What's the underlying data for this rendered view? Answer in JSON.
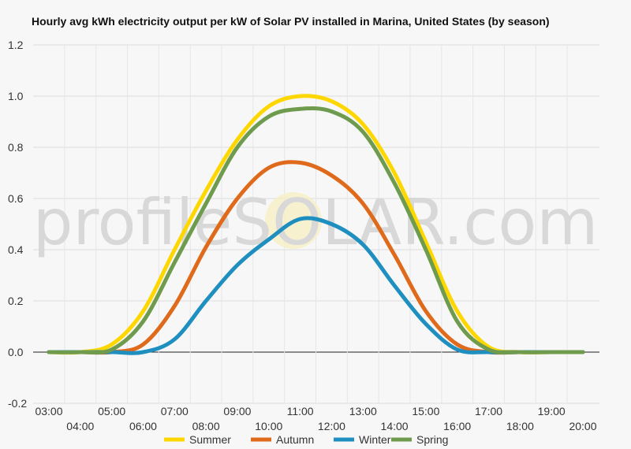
{
  "chart_data": {
    "type": "line",
    "title": "Hourly avg kWh electricity output per kW of Solar PV installed in Marina, United States (by season)",
    "xlabel": "",
    "ylabel": "",
    "categories": [
      "03:00",
      "04:00",
      "05:00",
      "06:00",
      "07:00",
      "08:00",
      "09:00",
      "10:00",
      "11:00",
      "12:00",
      "13:00",
      "14:00",
      "15:00",
      "16:00",
      "17:00",
      "18:00",
      "19:00",
      "20:00"
    ],
    "ylim": [
      -0.2,
      1.2
    ],
    "yticks": [
      -0.2,
      0.0,
      0.2,
      0.4,
      0.6,
      0.8,
      1.0,
      1.2
    ],
    "ytick_labels": [
      "-0.2",
      "0.0",
      "0.2",
      "0.4",
      "0.6",
      "0.8",
      "1.0",
      "1.2"
    ],
    "grid": true,
    "legend_position": "bottom",
    "watermark": "profileSOLAR.com",
    "series": [
      {
        "name": "Summer",
        "color": "#FFD700",
        "values": [
          0.0,
          0.0,
          0.03,
          0.16,
          0.4,
          0.63,
          0.83,
          0.96,
          1.0,
          0.98,
          0.89,
          0.7,
          0.43,
          0.16,
          0.02,
          0.0,
          0.0,
          0.0
        ]
      },
      {
        "name": "Autumn",
        "color": "#E06A1B",
        "values": [
          0.0,
          0.0,
          0.0,
          0.03,
          0.18,
          0.41,
          0.6,
          0.72,
          0.74,
          0.69,
          0.58,
          0.38,
          0.16,
          0.03,
          0.0,
          0.0,
          0.0,
          0.0
        ]
      },
      {
        "name": "Winter",
        "color": "#1F8FC0",
        "values": [
          0.0,
          0.0,
          0.0,
          0.0,
          0.05,
          0.2,
          0.34,
          0.44,
          0.52,
          0.5,
          0.42,
          0.26,
          0.11,
          0.01,
          0.0,
          0.0,
          0.0,
          0.0
        ]
      },
      {
        "name": "Spring",
        "color": "#6E9B4E",
        "values": [
          0.0,
          0.0,
          0.01,
          0.12,
          0.35,
          0.58,
          0.8,
          0.92,
          0.95,
          0.94,
          0.86,
          0.66,
          0.4,
          0.12,
          0.01,
          0.0,
          0.0,
          0.0
        ]
      }
    ]
  }
}
